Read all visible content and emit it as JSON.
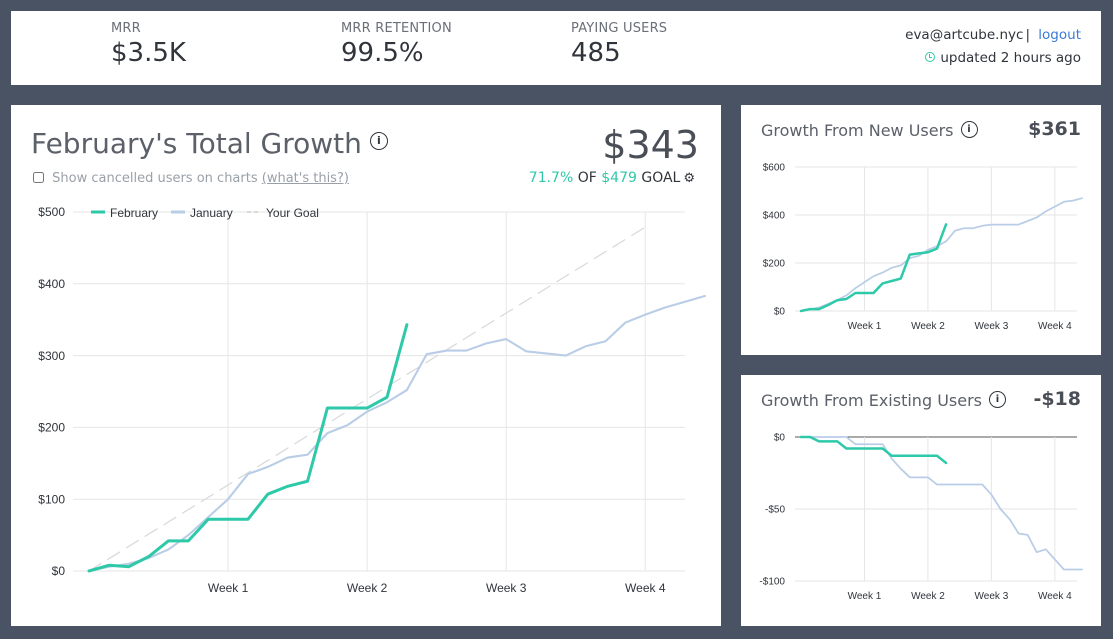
{
  "header": {
    "metrics": [
      {
        "label": "MRR",
        "value": "$3.5K"
      },
      {
        "label": "MRR RETENTION",
        "value": "99.5%"
      },
      {
        "label": "PAYING USERS",
        "value": "485"
      }
    ],
    "user_email": "eva@artcube.nyc",
    "logout_label": "logout",
    "updated_text": "updated 2 hours ago"
  },
  "main_panel": {
    "title": "February's Total Growth",
    "total": "$343",
    "checkbox_label": "Show cancelled users on charts",
    "whats_this": "(what's this?)",
    "goal_percent": "71.7%",
    "goal_of": "OF",
    "goal_amount": "$479",
    "goal_word": "GOAL"
  },
  "side_panels": [
    {
      "title": "Growth From New Users",
      "total": "$361"
    },
    {
      "title": "Growth From Existing Users",
      "total": "-$18"
    }
  ],
  "colors": {
    "february": "#2dc9a8",
    "january": "#b9cde6",
    "goal": "#d8d8d8",
    "grid": "#e6e6e6",
    "accent": "#2dc9a8",
    "link": "#3a7bd5"
  },
  "chart_data": [
    {
      "type": "line",
      "title": "February's Total Growth",
      "x_range": [
        0,
        30
      ],
      "ylim": [
        0,
        500
      ],
      "yticks": [
        0,
        100,
        200,
        300,
        400,
        500
      ],
      "ytick_labels": [
        "$0",
        "$100",
        "$200",
        "$300",
        "$400",
        "$500"
      ],
      "xticks": [
        {
          "day": 7,
          "label": "Week 1"
        },
        {
          "day": 14,
          "label": "Week 2"
        },
        {
          "day": 21,
          "label": "Week 3"
        },
        {
          "day": 28,
          "label": "Week 4"
        }
      ],
      "legend": [
        "February",
        "January",
        "Your Goal"
      ],
      "series": [
        {
          "name": "February",
          "color": "#2dc9a8",
          "x": [
            0,
            1,
            2,
            3,
            4,
            5,
            6,
            7,
            8,
            9,
            10,
            11,
            12,
            13,
            14,
            15,
            16
          ],
          "y": [
            0,
            8,
            6,
            20,
            42,
            42,
            72,
            72,
            72,
            107,
            118,
            125,
            227,
            227,
            227,
            242,
            343
          ]
        },
        {
          "name": "January",
          "color": "#b9cde6",
          "x": [
            0,
            1,
            2,
            3,
            4,
            5,
            6,
            7,
            8,
            9,
            10,
            11,
            12,
            13,
            14,
            15,
            16,
            17,
            18,
            19,
            20,
            21,
            22,
            23,
            24,
            25,
            26,
            27,
            28,
            29,
            30,
            31
          ],
          "y": [
            0,
            6,
            10,
            18,
            30,
            50,
            75,
            100,
            135,
            145,
            158,
            162,
            192,
            203,
            222,
            235,
            252,
            302,
            307,
            307,
            317,
            323,
            306,
            303,
            300,
            313,
            320,
            346,
            357,
            367,
            375,
            383
          ]
        },
        {
          "name": "Your Goal",
          "color": "#d8d8d8",
          "dashed": true,
          "x": [
            0,
            28
          ],
          "y": [
            0,
            479
          ]
        }
      ]
    },
    {
      "type": "line",
      "title": "Growth From New Users",
      "x_range": [
        0,
        30
      ],
      "ylim": [
        0,
        600
      ],
      "yticks": [
        0,
        200,
        400,
        600
      ],
      "ytick_labels": [
        "$0",
        "$200",
        "$400",
        "$600"
      ],
      "xticks": [
        {
          "day": 7,
          "label": "Week 1"
        },
        {
          "day": 14,
          "label": "Week 2"
        },
        {
          "day": 21,
          "label": "Week 3"
        },
        {
          "day": 28,
          "label": "Week 4"
        }
      ],
      "series": [
        {
          "name": "February",
          "color": "#2dc9a8",
          "x": [
            0,
            1,
            2,
            3,
            4,
            5,
            6,
            7,
            8,
            9,
            10,
            11,
            12,
            13,
            14,
            15,
            16
          ],
          "y": [
            0,
            8,
            8,
            25,
            45,
            50,
            75,
            75,
            75,
            115,
            125,
            135,
            235,
            240,
            245,
            260,
            361
          ]
        },
        {
          "name": "January",
          "color": "#b9cde6",
          "x": [
            0,
            1,
            2,
            3,
            4,
            5,
            6,
            7,
            8,
            9,
            10,
            11,
            12,
            13,
            14,
            15,
            16,
            17,
            18,
            19,
            20,
            21,
            22,
            23,
            24,
            25,
            26,
            27,
            28,
            29,
            30,
            31
          ],
          "y": [
            0,
            6,
            15,
            30,
            45,
            65,
            95,
            120,
            145,
            160,
            180,
            190,
            220,
            230,
            255,
            270,
            290,
            335,
            345,
            345,
            355,
            360,
            360,
            360,
            360,
            375,
            390,
            415,
            435,
            455,
            460,
            470
          ]
        }
      ]
    },
    {
      "type": "line",
      "title": "Growth From Existing Users",
      "x_range": [
        0,
        30
      ],
      "ylim": [
        -100,
        0
      ],
      "yticks": [
        0,
        -50,
        -100
      ],
      "ytick_labels": [
        "$0",
        "-$50",
        "-$100"
      ],
      "xticks": [
        {
          "day": 7,
          "label": "Week 1"
        },
        {
          "day": 14,
          "label": "Week 2"
        },
        {
          "day": 21,
          "label": "Week 3"
        },
        {
          "day": 28,
          "label": "Week 4"
        }
      ],
      "series": [
        {
          "name": "February",
          "color": "#2dc9a8",
          "x": [
            0,
            1,
            2,
            3,
            4,
            5,
            6,
            7,
            8,
            9,
            10,
            11,
            12,
            13,
            14,
            15,
            16
          ],
          "y": [
            0,
            0,
            -3,
            -3,
            -3,
            -8,
            -8,
            -8,
            -8,
            -8,
            -13,
            -13,
            -13,
            -13,
            -13,
            -13,
            -18
          ]
        },
        {
          "name": "January",
          "color": "#b9cde6",
          "x": [
            0,
            1,
            2,
            3,
            4,
            5,
            6,
            7,
            8,
            9,
            10,
            11,
            12,
            13,
            14,
            15,
            16,
            17,
            18,
            19,
            20,
            21,
            22,
            23,
            24,
            25,
            26,
            27,
            28,
            29,
            30,
            31
          ],
          "y": [
            0,
            0,
            0,
            0,
            0,
            0,
            -5,
            -5,
            -5,
            -5,
            -15,
            -22,
            -28,
            -28,
            -28,
            -33,
            -33,
            -33,
            -33,
            -33,
            -33,
            -40,
            -50,
            -57,
            -67,
            -68,
            -80,
            -78,
            -85,
            -92,
            -92,
            -92
          ]
        }
      ]
    }
  ]
}
